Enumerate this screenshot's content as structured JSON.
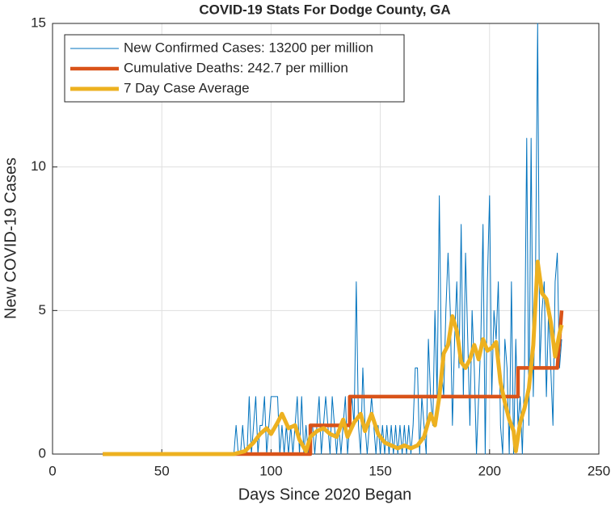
{
  "chart_data": {
    "type": "line",
    "title": "COVID-19 Stats For Dodge County, GA",
    "x_label": "Days Since 2020 Began",
    "y_label": "New COVID-19 Cases",
    "xlim": [
      0,
      250
    ],
    "xticks": [
      0,
      50,
      100,
      150,
      200,
      250
    ],
    "ylim": [
      0,
      15
    ],
    "yticks": [
      0,
      5,
      10,
      15
    ],
    "grid": true,
    "legend_position": "upper-left",
    "series": [
      {
        "name": "New Confirmed Cases: 13200 per million",
        "color": "#0072BD",
        "width": 1,
        "x": [
          23,
          82,
          83,
          84,
          85,
          86,
          87,
          88,
          89,
          90,
          91,
          92,
          93,
          94,
          95,
          96,
          97,
          98,
          99,
          100,
          101,
          102,
          103,
          104,
          105,
          106,
          107,
          108,
          109,
          110,
          111,
          112,
          113,
          114,
          115,
          116,
          117,
          118,
          119,
          120,
          121,
          122,
          123,
          124,
          125,
          126,
          127,
          128,
          129,
          130,
          131,
          132,
          133,
          134,
          135,
          136,
          137,
          138,
          139,
          140,
          141,
          142,
          143,
          144,
          145,
          146,
          147,
          148,
          149,
          150,
          151,
          152,
          153,
          154,
          155,
          156,
          157,
          158,
          159,
          160,
          161,
          162,
          163,
          164,
          165,
          166,
          167,
          168,
          169,
          170,
          171,
          172,
          173,
          174,
          175,
          176,
          177,
          178,
          179,
          180,
          181,
          182,
          183,
          184,
          185,
          186,
          187,
          188,
          189,
          190,
          191,
          192,
          193,
          194,
          195,
          196,
          197,
          198,
          199,
          200,
          201,
          202,
          203,
          204,
          205,
          206,
          207,
          208,
          209,
          210,
          211,
          212,
          213,
          214,
          215,
          216,
          217,
          218,
          219,
          220,
          221,
          222,
          223,
          224,
          225,
          226,
          227,
          228,
          229,
          230,
          231,
          232,
          233
        ],
        "values": [
          0,
          0,
          0,
          1,
          0,
          0,
          1,
          0,
          0,
          2,
          0,
          1,
          2,
          0,
          1,
          1,
          2,
          0,
          1,
          2,
          2,
          2,
          2,
          0,
          1,
          0,
          1,
          0,
          1,
          0,
          1,
          2,
          0,
          2,
          0,
          1,
          0,
          1,
          1,
          0,
          1,
          2,
          0,
          1,
          2,
          1,
          0,
          2,
          1,
          0,
          1,
          0,
          1,
          2,
          0,
          1,
          2,
          1,
          6,
          1,
          0,
          3,
          1,
          0,
          1,
          2,
          1,
          0,
          1,
          0,
          1,
          0,
          1,
          0,
          1,
          0,
          1,
          0,
          1,
          0,
          1,
          0,
          1,
          0,
          1,
          3,
          3,
          0,
          2,
          1,
          0,
          4,
          2,
          1,
          5,
          2,
          9,
          3,
          2,
          5,
          7,
          5,
          1,
          4,
          6,
          3,
          8,
          2,
          7,
          4,
          1,
          5,
          3,
          0,
          2,
          4,
          8,
          0,
          6,
          9,
          2,
          5,
          4,
          6,
          1,
          0,
          4,
          3,
          0,
          6,
          0,
          4,
          1,
          2,
          0,
          3,
          11,
          1,
          11,
          2,
          6,
          15,
          3,
          5,
          6,
          2,
          5,
          3,
          1,
          6,
          7,
          3,
          4
        ]
      },
      {
        "name": "Cumulative Deaths: 242.7 per million",
        "color": "#D95319",
        "width": 4.5,
        "x": [
          23,
          118,
          118,
          136,
          136,
          213,
          213,
          231,
          232,
          233
        ],
        "values": [
          0,
          0,
          1,
          1,
          2,
          2,
          3,
          3,
          4,
          5
        ]
      },
      {
        "name": "7 Day Case Average",
        "color": "#EDB120",
        "width": 5,
        "x": [
          23,
          83,
          88,
          92,
          95,
          98,
          100,
          103,
          105,
          108,
          111,
          113,
          116,
          118,
          121,
          124,
          127,
          130,
          133,
          135,
          138,
          141,
          143,
          146,
          149,
          152,
          155,
          158,
          161,
          164,
          167,
          170,
          173,
          175,
          177,
          179,
          181,
          183,
          185,
          187,
          189,
          191,
          193,
          195,
          197,
          199,
          201,
          203,
          205,
          207,
          209,
          211,
          212,
          214,
          216,
          218,
          220,
          222,
          224,
          226,
          228,
          230,
          232,
          233
        ],
        "values": [
          0,
          0,
          0.1,
          0.4,
          0.7,
          0.9,
          0.7,
          1.1,
          1.4,
          0.9,
          1.0,
          0.5,
          0.1,
          0.6,
          0.8,
          0.9,
          0.7,
          0.6,
          1.2,
          0.6,
          1.1,
          1.4,
          0.8,
          1.4,
          0.7,
          0.4,
          0.3,
          0.2,
          0.3,
          0.2,
          0.3,
          0.6,
          1.4,
          1.0,
          2.0,
          3.5,
          3.8,
          4.8,
          4.3,
          3.2,
          3.0,
          3.3,
          3.8,
          3.3,
          4.0,
          3.6,
          3.7,
          3.9,
          2.5,
          1.8,
          1.2,
          0.8,
          0.1,
          1.1,
          1.6,
          2.3,
          3.8,
          6.7,
          5.6,
          5.4,
          4.6,
          3.4,
          4.2,
          4.5
        ]
      }
    ]
  }
}
